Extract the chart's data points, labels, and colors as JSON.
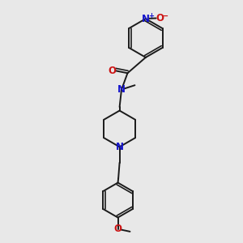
{
  "bg_color": "#e8e8e8",
  "bond_color": "#1a1a1a",
  "N_color": "#1414cc",
  "O_color": "#cc1414",
  "font_size": 8,
  "line_width": 1.4,
  "fig_w": 3.0,
  "fig_h": 3.0,
  "dpi": 100,
  "xlim": [
    0.0,
    1.0
  ],
  "ylim": [
    0.0,
    1.0
  ]
}
